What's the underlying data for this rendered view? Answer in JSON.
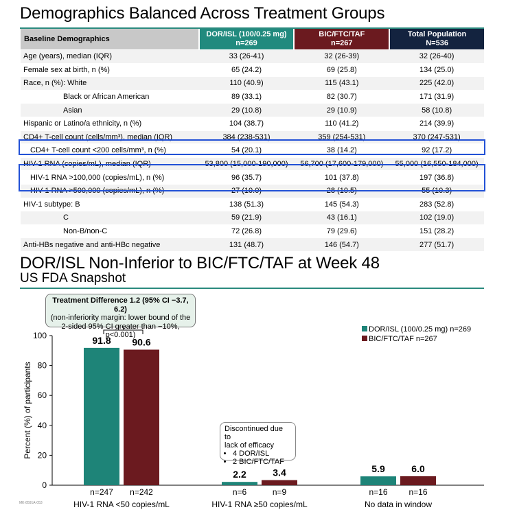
{
  "slide1": {
    "title": "Demographics Balanced Across Treatment Groups",
    "headers": {
      "label": "Baseline Demographics",
      "col1": [
        "DOR/ISL (100/0.25 mg)",
        "n=269"
      ],
      "col2": [
        "BIC/FTC/TAF",
        "n=267"
      ],
      "col3": [
        "Total Population",
        "N=536"
      ]
    },
    "rows": [
      {
        "label": "Age (years), median (IQR)",
        "v1": "33 (26-41)",
        "v2": "32 (26-39)",
        "v3": "32 (26-40)"
      },
      {
        "label": "Female sex at birth, n (%)",
        "v1": "65 (24.2)",
        "v2": "69 (25.8)",
        "v3": "134 (25.0)"
      },
      {
        "label": "Race, n (%): White",
        "v1": "110 (40.9)",
        "v2": "115 (43.1)",
        "v3": "225 (42.0)"
      },
      {
        "label": "Black or African American",
        "v1": "89 (33.1)",
        "v2": "82 (30.7)",
        "v3": "171 (31.9)"
      },
      {
        "label": "Asian",
        "v1": "29 (10.8)",
        "v2": "29 (10.9)",
        "v3": "58 (10.8)"
      },
      {
        "label": "Hispanic or Latino/a ethnicity, n (%)",
        "v1": "104 (38.7)",
        "v2": "110 (41.2)",
        "v3": "214 (39.9)"
      },
      {
        "label": "CD4+ T-cell count (cells/mm³), median (IQR)",
        "v1": "384 (238-531)",
        "v2": "359 (254-531)",
        "v3": "370 (247-531)"
      },
      {
        "label": "CD4+ T-cell count <200 cells/mm³, n (%)",
        "v1": "54 (20.1)",
        "v2": "38 (14.2)",
        "v3": "92 (17.2)"
      },
      {
        "label": "HIV-1 RNA (copies/mL), median (IQR)",
        "v1": "53,800 (15,000-190,000)",
        "v2": "56,700 (17,600-179,000)",
        "v3": "55,000 (16,550-184,000)"
      },
      {
        "label": "HIV-1 RNA >100,000 (copies/mL), n (%)",
        "v1": "96 (35.7)",
        "v2": "101 (37.8)",
        "v3": "197 (36.8)"
      },
      {
        "label": "HIV-1 RNA >500,000 (copies/mL), n (%)",
        "v1": "27 (10.0)",
        "v2": "28 (10.5)",
        "v3": "55 (10.3)"
      },
      {
        "label": "HIV-1 subtype: B",
        "v1": "138 (51.3)",
        "v2": "145 (54.3)",
        "v3": "283 (52.8)"
      },
      {
        "label": "C",
        "v1": "59 (21.9)",
        "v2": "43 (16.1)",
        "v3": "102 (19.0)"
      },
      {
        "label": "Non-B/non-C",
        "v1": "72 (26.8)",
        "v2": "79 (29.6)",
        "v3": "151 (28.2)"
      },
      {
        "label": "Anti-HBs negative and anti-HBc negative",
        "v1": "131 (48.7)",
        "v2": "146 (54.7)",
        "v3": "277 (51.7)"
      }
    ]
  },
  "slide2": {
    "title": "DOR/ISL Non-Inferior to BIC/FTC/TAF at Week 48",
    "subtitle": "US FDA Snapshot",
    "treatment_difference": {
      "headline": "Treatment Difference 1.2 (95% CI −3.7, 6.2)",
      "detail_line1": "(non-inferiority margin: lower bound of the",
      "detail_line2": "2-sided 95% CI greater than −10%, p<0.001)"
    },
    "discontinued": {
      "line1": "Discontinued due to",
      "line2": "lack of efficacy",
      "items": [
        "4 DOR/ISL",
        "2 BIC/FTC/TAF"
      ]
    },
    "footnote": "MK-8591A-053"
  },
  "chart_data": {
    "type": "bar",
    "ylabel": "Percent (%) of participants",
    "ylim": [
      0,
      100
    ],
    "yticks": [
      0,
      20,
      40,
      60,
      80,
      100
    ],
    "categories": [
      "HIV-1 RNA <50 copies/mL",
      "HIV-1 RNA ≥50 copies/mL",
      "No data in window"
    ],
    "series": [
      {
        "name": "DOR/ISL (100/0.25 mg) n=269",
        "color": "#1e8478",
        "values": [
          91.8,
          2.2,
          5.9
        ],
        "labels": [
          "91.8",
          "2.2",
          "5.9"
        ],
        "n": [
          "n=247",
          "n=6",
          "n=16"
        ]
      },
      {
        "name": "BIC/FTC/TAF n=267",
        "color": "#6b1a1f",
        "values": [
          90.6,
          3.4,
          6.0
        ],
        "labels": [
          "90.6",
          "3.4",
          "6.0"
        ],
        "n": [
          "n=242",
          "n=9",
          "n=16"
        ]
      }
    ],
    "legend": "top-right",
    "grid": false
  }
}
